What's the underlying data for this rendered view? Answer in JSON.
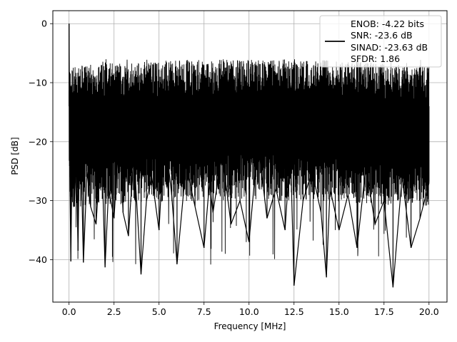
{
  "chart_data": {
    "type": "line",
    "title": "",
    "xlabel": "Frequency [MHz]",
    "ylabel": "PSD [dB]",
    "xlim": [
      -0.9,
      21.0
    ],
    "ylim": [
      -47.2,
      2.2
    ],
    "x_ticks": [
      0.0,
      2.5,
      5.0,
      7.5,
      10.0,
      12.5,
      15.0,
      17.5,
      20.0
    ],
    "x_tick_labels": [
      "0.0",
      "2.5",
      "5.0",
      "7.5",
      "10.0",
      "12.5",
      "15.0",
      "17.5",
      "20.0"
    ],
    "y_ticks": [
      0,
      -10,
      -20,
      -30,
      -40
    ],
    "y_tick_labels": [
      "0",
      "−10",
      "−20",
      "−30",
      "−40"
    ],
    "grid": true,
    "legend_placement": "top-right",
    "legend": [
      "ENOB: -4.22 bits",
      "SNR: -23.6 dB",
      "SINAD: -23.63 dB",
      "SFDR: 1.86"
    ],
    "line_color": "#000000",
    "series": [
      {
        "x": [
          0.0,
          0.02,
          0.05,
          0.1,
          0.2,
          0.3,
          0.4,
          0.5,
          0.6,
          0.8,
          1.0,
          1.2,
          1.5,
          1.8,
          2.0,
          2.2,
          2.5,
          2.8,
          3.0,
          3.3,
          3.6,
          4.0,
          4.3,
          4.6,
          5.0,
          5.3,
          5.7,
          6.0,
          6.5,
          7.0,
          7.5,
          7.8,
          8.0,
          8.5,
          9.0,
          9.5,
          10.0,
          10.5,
          11.0,
          11.5,
          12.0,
          12.3,
          12.5,
          13.0,
          13.5,
          14.0,
          14.3,
          14.5,
          15.0,
          15.5,
          16.0,
          16.5,
          17.0,
          17.5,
          18.0,
          18.5,
          19.0,
          19.5,
          20.0
        ],
        "y": [
          0.0,
          -12.0,
          -26.0,
          -40.3,
          -14.0,
          -31.0,
          -22.0,
          -38.5,
          -12.5,
          -40.5,
          -25.0,
          -31.0,
          -34.0,
          -20.0,
          -41.3,
          -28.0,
          -33.0,
          -18.0,
          -32.0,
          -36.0,
          -22.0,
          -42.5,
          -30.0,
          -26.0,
          -35.0,
          -18.0,
          -29.0,
          -40.8,
          -24.0,
          -31.0,
          -38.0,
          -27.0,
          -32.0,
          -22.0,
          -34.0,
          -30.0,
          -37.0,
          -20.0,
          -33.0,
          -28.0,
          -35.0,
          -21.0,
          -44.4,
          -30.0,
          -25.0,
          -32.0,
          -43.0,
          -28.0,
          -35.0,
          -29.0,
          -38.0,
          -24.0,
          -34.0,
          -30.0,
          -44.7,
          -26.0,
          -38.0,
          -33.0,
          -27.0
        ]
      }
    ]
  }
}
